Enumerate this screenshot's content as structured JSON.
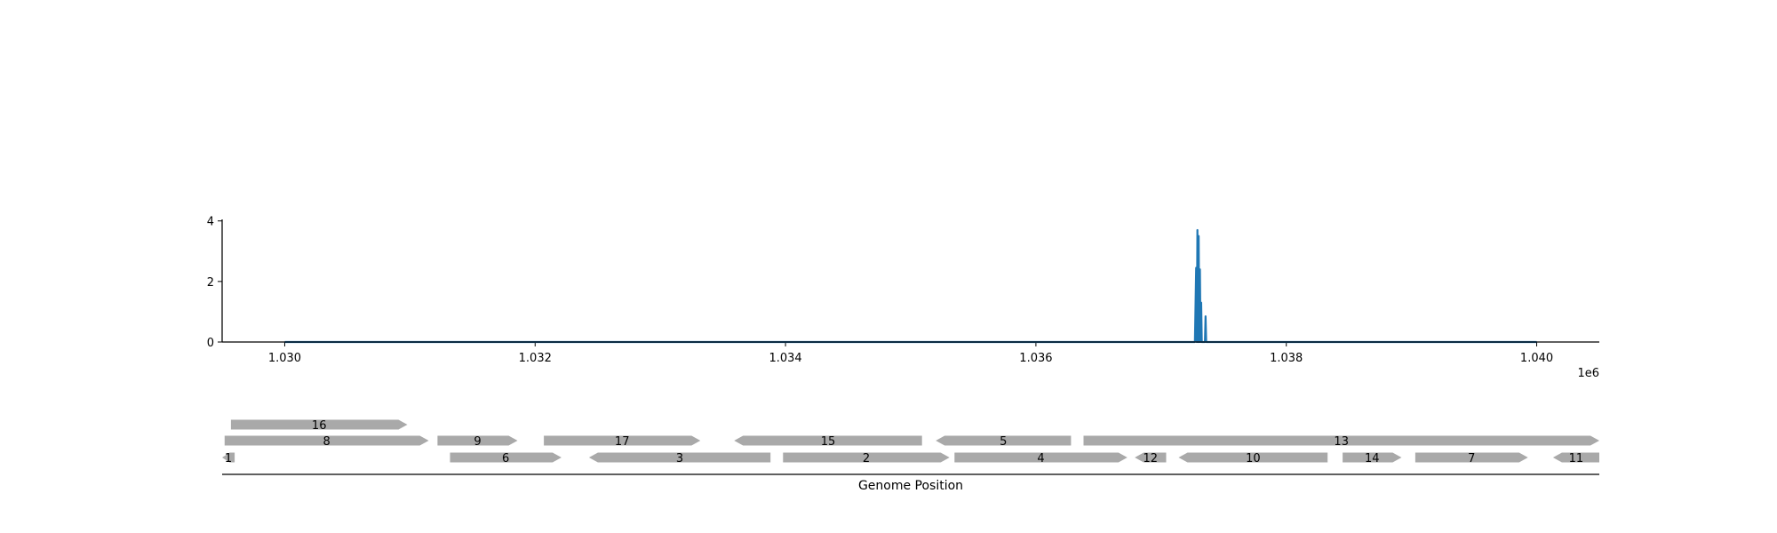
{
  "chart_data": [
    {
      "type": "line",
      "title": "",
      "xlabel": "",
      "ylabel": "",
      "x_offset_label": "1e6",
      "xlim": [
        1029500,
        1040500
      ],
      "ylim": [
        0,
        4.05
      ],
      "xticks": [
        1030000,
        1032000,
        1034000,
        1036000,
        1038000,
        1040000
      ],
      "xtick_labels": [
        "1.030",
        "1.032",
        "1.034",
        "1.036",
        "1.038",
        "1.040"
      ],
      "yticks": [
        0,
        2,
        4
      ],
      "ytick_labels": [
        "0",
        "2",
        "4"
      ],
      "series": [
        {
          "color": "#1f77b4",
          "x": [
            1030000,
            1037270,
            1037280,
            1037285,
            1037290,
            1037295,
            1037300,
            1037305,
            1037310,
            1037315,
            1037320,
            1037325,
            1037330,
            1037340,
            1037350,
            1037355,
            1037360,
            1037370,
            1040000
          ],
          "y": [
            0,
            0,
            2.45,
            0,
            3.7,
            0,
            3.5,
            0,
            2.4,
            0,
            1.3,
            0,
            0,
            0,
            0,
            0.85,
            0,
            0,
            0
          ]
        }
      ]
    },
    {
      "type": "gene-track",
      "xlabel": "Genome Position",
      "color": "#a9a9a9",
      "genes": [
        {
          "label": "1",
          "start": 1029450,
          "end": 1029600,
          "strand": -1,
          "row": 0
        },
        {
          "label": "6",
          "start": 1031320,
          "end": 1032210,
          "strand": 1,
          "row": 0
        },
        {
          "label": "3",
          "start": 1032430,
          "end": 1033880,
          "strand": -1,
          "row": 0
        },
        {
          "label": "2",
          "start": 1033980,
          "end": 1035310,
          "strand": 1,
          "row": 0
        },
        {
          "label": "4",
          "start": 1035350,
          "end": 1036730,
          "strand": 1,
          "row": 0
        },
        {
          "label": "12",
          "start": 1036790,
          "end": 1037040,
          "strand": -1,
          "row": 0
        },
        {
          "label": "10",
          "start": 1037140,
          "end": 1038330,
          "strand": -1,
          "row": 0
        },
        {
          "label": "14",
          "start": 1038450,
          "end": 1038920,
          "strand": 1,
          "row": 0
        },
        {
          "label": "7",
          "start": 1039030,
          "end": 1039930,
          "strand": 1,
          "row": 0
        },
        {
          "label": "11",
          "start": 1040130,
          "end": 1040500,
          "strand": -1,
          "row": 0
        },
        {
          "label": "8",
          "start": 1029520,
          "end": 1031150,
          "strand": 1,
          "row": 1
        },
        {
          "label": "9",
          "start": 1031220,
          "end": 1031860,
          "strand": 1,
          "row": 1
        },
        {
          "label": "17",
          "start": 1032070,
          "end": 1033320,
          "strand": 1,
          "row": 1
        },
        {
          "label": "15",
          "start": 1033590,
          "end": 1035090,
          "strand": -1,
          "row": 1
        },
        {
          "label": "5",
          "start": 1035200,
          "end": 1036280,
          "strand": -1,
          "row": 1
        },
        {
          "label": "13",
          "start": 1036380,
          "end": 1040500,
          "strand": 1,
          "row": 1
        },
        {
          "label": "16",
          "start": 1029570,
          "end": 1030980,
          "strand": 1,
          "row": 2
        }
      ]
    }
  ]
}
